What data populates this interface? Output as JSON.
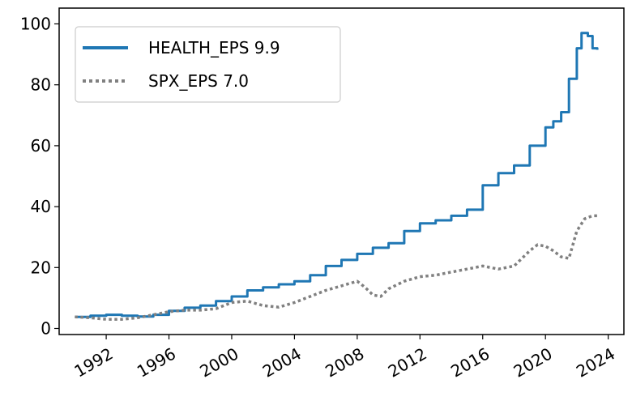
{
  "chart_data": {
    "type": "line",
    "title": "",
    "xlabel": "",
    "ylabel": "",
    "xlim": [
      1989.0,
      2025.0
    ],
    "ylim": [
      0,
      100
    ],
    "grid": false,
    "legend_position": "top-left",
    "x_ticks": [
      "1992",
      "1996",
      "2000",
      "2004",
      "2008",
      "2012",
      "2016",
      "2020",
      "2024"
    ],
    "y_ticks": [
      "0",
      "20",
      "40",
      "60",
      "80",
      "100"
    ],
    "series": [
      {
        "name": "HEALTH_EPS 9.9",
        "legend_label": "HEALTH_EPS 9.9",
        "color": "#1f77b4",
        "style": "solid",
        "x": [
          1990.0,
          1991.0,
          1992.0,
          1993.0,
          1994.0,
          1995.0,
          1996.0,
          1997.0,
          1998.0,
          1999.0,
          2000.0,
          2001.0,
          2002.0,
          2003.0,
          2004.0,
          2005.0,
          2006.0,
          2007.0,
          2008.0,
          2009.0,
          2010.0,
          2011.0,
          2012.0,
          2013.0,
          2014.0,
          2015.0,
          2016.0,
          2017.0,
          2018.0,
          2019.0,
          2020.0,
          2020.5,
          2021.0,
          2021.5,
          2022.0,
          2022.3,
          2022.7,
          2023.0,
          2023.3
        ],
        "y": [
          3.8,
          4.2,
          4.5,
          4.2,
          3.9,
          4.5,
          5.8,
          6.8,
          7.5,
          9.0,
          10.5,
          12.5,
          13.5,
          14.5,
          15.5,
          17.5,
          20.5,
          22.5,
          24.5,
          26.5,
          28.0,
          32.0,
          34.5,
          35.5,
          37.0,
          39.0,
          47.0,
          51.0,
          53.5,
          60.0,
          66.0,
          68.0,
          71.0,
          82.0,
          92.0,
          97.0,
          96.0,
          92.0,
          91.5
        ]
      },
      {
        "name": "SPX_EPS 7.0",
        "legend_label": "SPX_EPS 7.0",
        "color": "#808080",
        "style": "dotted",
        "x": [
          1990.0,
          1991.0,
          1992.0,
          1993.0,
          1994.0,
          1995.0,
          1996.0,
          1997.0,
          1998.0,
          1999.0,
          2000.0,
          2001.0,
          2002.0,
          2003.0,
          2004.0,
          2005.0,
          2006.0,
          2007.0,
          2008.0,
          2008.5,
          2009.0,
          2009.5,
          2010.0,
          2011.0,
          2012.0,
          2013.0,
          2014.0,
          2015.0,
          2016.0,
          2017.0,
          2018.0,
          2019.0,
          2019.5,
          2020.0,
          2020.5,
          2021.0,
          2021.5,
          2022.0,
          2022.5,
          2023.0,
          2023.3
        ],
        "y": [
          3.8,
          3.5,
          3.0,
          3.0,
          3.5,
          4.5,
          5.5,
          6.0,
          6.0,
          6.5,
          8.5,
          9.0,
          7.5,
          7.0,
          8.5,
          10.5,
          12.5,
          14.0,
          15.5,
          13.5,
          11.0,
          10.5,
          13.0,
          15.5,
          17.0,
          17.5,
          18.5,
          19.5,
          20.5,
          19.5,
          20.5,
          25.5,
          27.5,
          27.0,
          25.5,
          23.5,
          23.0,
          32.0,
          36.0,
          37.0,
          37.0
        ]
      }
    ]
  }
}
